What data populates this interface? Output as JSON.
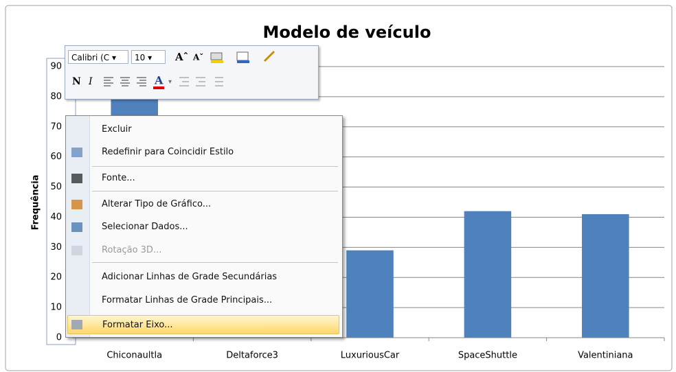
{
  "chart_data": {
    "type": "bar",
    "title": "Modelo de veículo",
    "y_label": "Frequência",
    "categories": [
      "Chiconaultla",
      "Deltaforce3",
      "LuxuriousCar",
      "SpaceShuttle",
      "Valentiniana"
    ],
    "values": [
      84,
      null,
      29,
      42,
      41
    ],
    "color": "#4f81bd",
    "ylim": [
      0,
      90
    ],
    "yticks": [
      0,
      10,
      20,
      30,
      40,
      50,
      60,
      70,
      80,
      90
    ],
    "grid": true
  },
  "toolbar": {
    "font": "Calibri (C",
    "size": "10"
  },
  "context_menu": {
    "items": [
      {
        "label": "Excluir"
      },
      {
        "label": "Redefinir para Coincidir Estilo"
      },
      {
        "label": "Fonte..."
      },
      {
        "label": "Alterar Tipo de Gráfico..."
      },
      {
        "label": "Selecionar Dados..."
      },
      {
        "label": "Rotação 3D...",
        "disabled": true
      },
      {
        "label": "Adicionar Linhas de Grade Secundárias"
      },
      {
        "label": "Formatar Linhas de Grade Principais..."
      },
      {
        "label": "Formatar Eixo...",
        "highlighted": true
      }
    ]
  }
}
